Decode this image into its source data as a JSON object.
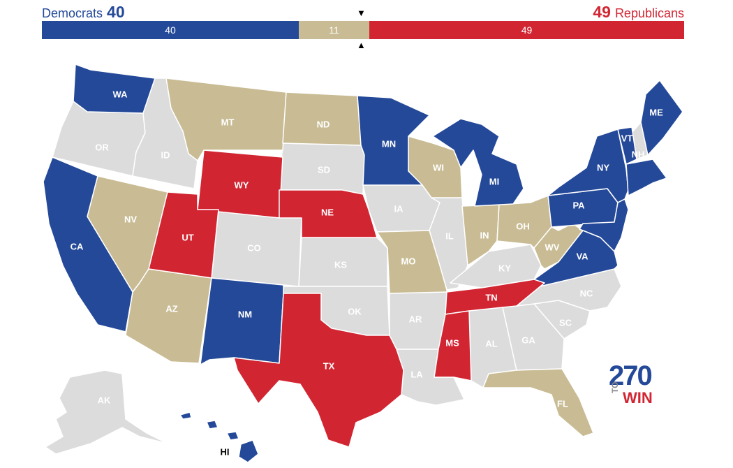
{
  "header": {
    "dem_name": "Democrats",
    "dem_count": "40",
    "rep_name": "Republicans",
    "rep_count": "49"
  },
  "bar": {
    "dem_value": "40",
    "tossup_value": "11",
    "rep_value": "49"
  },
  "colors": {
    "dem": "#244999",
    "rep": "#d22532",
    "tossup": "#c9bc94",
    "none": "#dcdcdc"
  },
  "states": {
    "WA": "WA",
    "OR": "OR",
    "CA": "CA",
    "ID": "ID",
    "NV": "NV",
    "MT": "MT",
    "WY": "WY",
    "UT": "UT",
    "AZ": "AZ",
    "CO": "CO",
    "NM": "NM",
    "ND": "ND",
    "SD": "SD",
    "NE": "NE",
    "KS": "KS",
    "OK": "OK",
    "TX": "TX",
    "MN": "MN",
    "IA": "IA",
    "MO": "MO",
    "AR": "AR",
    "LA": "LA",
    "WI": "WI",
    "IL": "IL",
    "MS": "MS",
    "MI": "MI",
    "IN": "IN",
    "KY": "KY",
    "TN": "TN",
    "AL": "AL",
    "OH": "OH",
    "WV": "WV",
    "VA": "VA",
    "NC": "NC",
    "SC": "SC",
    "GA": "GA",
    "FL": "FL",
    "PA": "PA",
    "NY": "NY",
    "VT": "VT",
    "NH": "NH",
    "ME": "ME",
    "AK": "AK",
    "HI": "HI"
  },
  "logo": {
    "number": "270",
    "to": "TO",
    "win": "WIN"
  }
}
